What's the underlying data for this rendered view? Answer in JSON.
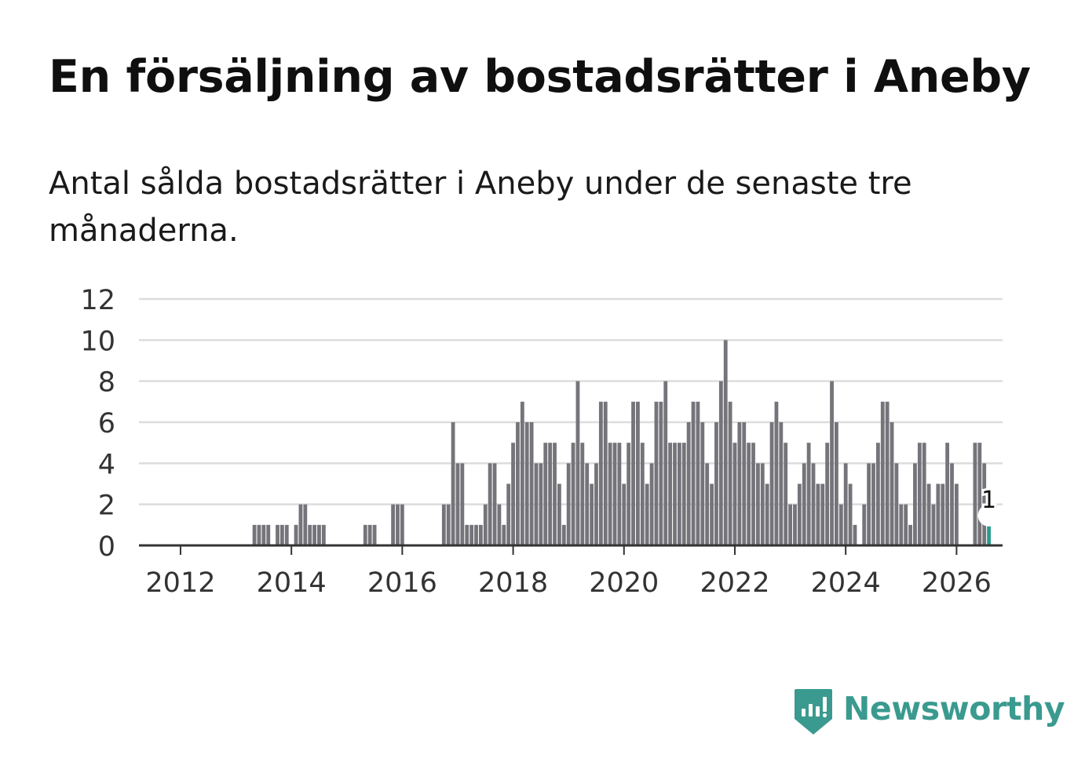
{
  "header": {
    "title": "En försäljning av bostadsrätter i Aneby",
    "subtitle": "Antal sålda bostadsrätter i Aneby under de senaste tre månaderna."
  },
  "brand": {
    "name": "Newsworthy",
    "icon": "newsworthy-logo-icon",
    "color": "#3a9a8f"
  },
  "colors": {
    "bar": "#75747a",
    "highlight": "#2a9d8f",
    "grid": "#dddddd",
    "axis": "#333333",
    "text": "#333333"
  },
  "chart_data": {
    "type": "bar",
    "title": "En försäljning av bostadsrätter i Aneby",
    "subtitle": "Antal sålda bostadsrätter i Aneby under de senaste tre månaderna.",
    "xlabel": "",
    "ylabel": "",
    "ylim": [
      0,
      12
    ],
    "yticks": [
      0,
      2,
      4,
      6,
      8,
      10,
      12
    ],
    "xticks": [
      2012,
      2014,
      2016,
      2018,
      2020,
      2022,
      2024,
      2026
    ],
    "x_range": [
      2011.25,
      2026.83
    ],
    "grid": true,
    "start": "2011-04",
    "frequency": "monthly",
    "values": [
      0,
      0,
      0,
      0,
      0,
      0,
      0,
      0,
      0,
      0,
      0,
      0,
      0,
      0,
      0,
      0,
      0,
      0,
      0,
      0,
      0,
      0,
      0,
      0,
      0,
      1,
      1,
      1,
      1,
      0,
      1,
      1,
      1,
      0,
      1,
      2,
      2,
      1,
      1,
      1,
      1,
      0,
      0,
      0,
      0,
      0,
      0,
      0,
      0,
      1,
      1,
      1,
      0,
      0,
      0,
      2,
      2,
      2,
      0,
      0,
      0,
      0,
      0,
      0,
      0,
      0,
      2,
      2,
      6,
      4,
      4,
      1,
      1,
      1,
      1,
      2,
      4,
      4,
      2,
      1,
      3,
      5,
      6,
      7,
      6,
      6,
      4,
      4,
      5,
      5,
      5,
      3,
      1,
      4,
      5,
      8,
      5,
      4,
      3,
      4,
      7,
      7,
      5,
      5,
      5,
      3,
      5,
      7,
      7,
      5,
      3,
      4,
      7,
      7,
      8,
      5,
      5,
      5,
      5,
      6,
      7,
      7,
      6,
      4,
      3,
      6,
      8,
      10,
      7,
      5,
      6,
      6,
      5,
      5,
      4,
      4,
      3,
      6,
      7,
      6,
      5,
      2,
      2,
      3,
      4,
      5,
      4,
      3,
      3,
      5,
      8,
      6,
      2,
      4,
      3,
      1,
      0,
      2,
      4,
      4,
      5,
      7,
      7,
      6,
      4,
      2,
      2,
      1,
      4,
      5,
      5,
      3,
      2,
      3,
      3,
      5,
      4,
      3,
      0,
      0,
      0,
      5,
      5,
      4,
      1
    ],
    "highlight_last": true,
    "annotation": {
      "label": "1"
    }
  }
}
